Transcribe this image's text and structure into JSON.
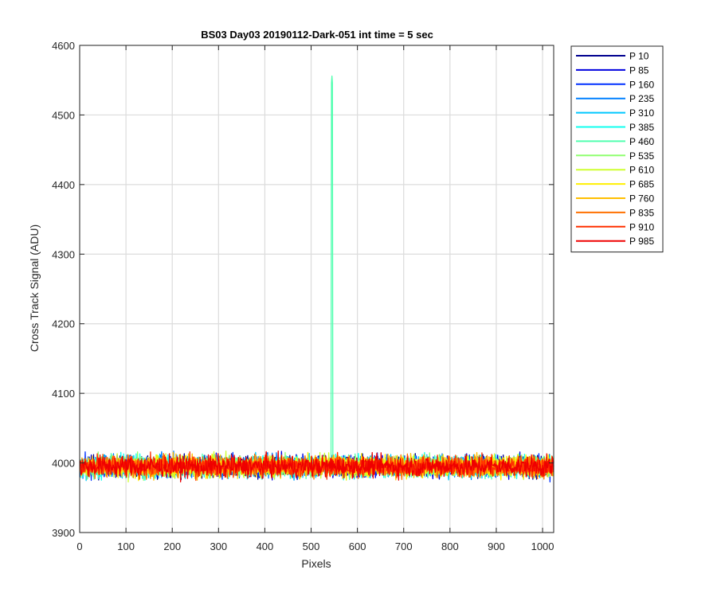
{
  "chart_data": {
    "type": "line",
    "title": "BS03 Day03 20190112-Dark-051 int time = 5 sec",
    "xlabel": "Pixels",
    "ylabel": "Cross Track Signal (ADU)",
    "xlim": [
      0,
      1024
    ],
    "ylim": [
      3900,
      4600
    ],
    "xticks": [
      0,
      100,
      200,
      300,
      400,
      500,
      600,
      700,
      800,
      900,
      1000
    ],
    "yticks": [
      3900,
      4000,
      4100,
      4200,
      4300,
      4400,
      4500,
      4600
    ],
    "grid": true,
    "legend_position": "outside-top-right",
    "noise": {
      "mean": 3995,
      "spread": 15
    },
    "series": [
      {
        "name": "P 10",
        "color": "#00008f"
      },
      {
        "name": "P 85",
        "color": "#0000df"
      },
      {
        "name": "P 160",
        "color": "#0030ff"
      },
      {
        "name": "P 235",
        "color": "#0080ff"
      },
      {
        "name": "P 310",
        "color": "#00c8ff"
      },
      {
        "name": "P 385",
        "color": "#10ffef"
      },
      {
        "name": "P 460",
        "color": "#50ffaf",
        "spike": {
          "x": 545,
          "y": 4556
        }
      },
      {
        "name": "P 535",
        "color": "#8fff70"
      },
      {
        "name": "P 610",
        "color": "#cfff30"
      },
      {
        "name": "P 685",
        "color": "#ffef00"
      },
      {
        "name": "P 760",
        "color": "#ffbf00"
      },
      {
        "name": "P 835",
        "color": "#ff7000"
      },
      {
        "name": "P 910",
        "color": "#ff3000"
      },
      {
        "name": "P 985",
        "color": "#ef0000"
      }
    ]
  }
}
